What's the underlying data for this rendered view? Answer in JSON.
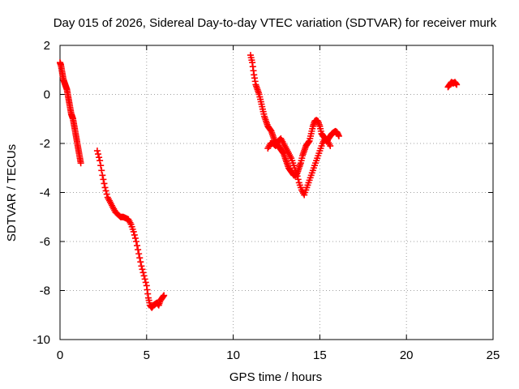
{
  "chart_data": {
    "type": "scatter",
    "title": "Day 015 of 2026, Sidereal Day-to-day VTEC variation (SDTVAR) for receiver murk",
    "xlabel": "GPS time / hours",
    "ylabel": "SDTVAR / TECUs",
    "xlim": [
      0,
      25
    ],
    "ylim": [
      -10,
      2
    ],
    "x_ticks": [
      0,
      5,
      10,
      15,
      20,
      25
    ],
    "y_ticks": [
      -10,
      -8,
      -6,
      -4,
      -2,
      0,
      2
    ],
    "x_tick_labels": [
      "0",
      "5",
      "10",
      "15",
      "20",
      "25"
    ],
    "y_tick_labels": [
      "-10",
      "-8",
      "-6",
      "-4",
      "-2",
      "0",
      "2"
    ],
    "grid": true,
    "marker": "+",
    "series_color": "#ff0000",
    "series": [
      {
        "name": "SDTVAR",
        "segments": [
          {
            "x": [
              0.0,
              0.05,
              0.1,
              0.15,
              0.2,
              0.25,
              0.3,
              0.35,
              0.4,
              0.45,
              0.5,
              0.55,
              0.6,
              0.65,
              0.7,
              0.75,
              0.8,
              0.85,
              0.9,
              0.95,
              1.0,
              1.05,
              1.1,
              1.15,
              1.2
            ],
            "y": [
              1.3,
              1.2,
              1.0,
              0.8,
              0.6,
              0.5,
              0.4,
              0.3,
              0.2,
              0.0,
              -0.2,
              -0.4,
              -0.6,
              -0.8,
              -0.9,
              -1.0,
              -1.2,
              -1.4,
              -1.6,
              -1.8,
              -2.0,
              -2.2,
              -2.4,
              -2.6,
              -2.8
            ]
          },
          {
            "x": [
              2.15,
              2.3,
              2.45,
              2.6,
              2.75,
              2.9,
              3.05,
              3.2,
              3.35,
              3.5,
              3.65,
              3.8,
              3.95,
              4.1,
              4.25,
              4.4,
              4.55,
              4.7,
              4.85,
              5.0,
              5.1,
              5.2,
              5.3,
              5.4,
              5.5,
              5.6,
              5.7,
              5.8,
              5.9,
              6.0
            ],
            "y": [
              -2.3,
              -2.7,
              -3.3,
              -3.8,
              -4.2,
              -4.4,
              -4.6,
              -4.8,
              -4.9,
              -5.0,
              -5.0,
              -5.05,
              -5.1,
              -5.3,
              -5.6,
              -6.0,
              -6.5,
              -7.0,
              -7.4,
              -7.8,
              -8.3,
              -8.6,
              -8.7,
              -8.6,
              -8.55,
              -8.5,
              -8.6,
              -8.4,
              -8.3,
              -8.2
            ]
          },
          {
            "x": [
              11.0,
              11.1,
              11.2,
              11.3,
              11.4,
              11.5,
              11.6,
              11.7,
              11.8,
              11.9,
              12.0,
              12.1,
              12.2,
              12.3,
              12.4,
              12.5,
              12.6,
              12.7,
              12.8,
              12.9,
              13.0,
              13.1,
              13.2,
              13.3,
              13.4,
              13.5,
              13.6,
              13.7,
              13.8,
              13.9,
              14.0,
              14.1,
              14.2,
              14.3,
              14.4,
              14.5,
              14.6,
              14.7,
              14.8,
              14.9,
              15.0,
              15.1,
              15.2,
              15.3,
              15.4,
              15.5,
              15.6,
              15.7,
              15.8,
              15.9,
              16.0,
              16.1
            ],
            "y": [
              1.6,
              1.3,
              0.8,
              0.4,
              0.2,
              0.0,
              -0.3,
              -0.6,
              -0.9,
              -1.1,
              -1.3,
              -1.4,
              -1.5,
              -1.7,
              -1.9,
              -2.0,
              -2.1,
              -2.2,
              -2.3,
              -2.4,
              -2.6,
              -2.8,
              -3.0,
              -3.1,
              -3.2,
              -3.3,
              -3.3,
              -3.2,
              -3.0,
              -2.8,
              -2.5,
              -2.3,
              -2.1,
              -2.0,
              -1.9,
              -1.6,
              -1.3,
              -1.1,
              -1.05,
              -1.1,
              -1.3,
              -1.6,
              -1.7,
              -1.8,
              -1.9,
              -1.8,
              -1.7,
              -1.6,
              -1.55,
              -1.5,
              -1.55,
              -1.7
            ]
          },
          {
            "x": [
              12.0,
              12.15,
              12.3,
              12.45,
              12.6,
              12.75,
              12.9,
              13.05,
              13.2,
              13.35,
              13.5,
              13.65,
              13.8,
              13.95,
              14.1,
              14.25,
              14.4,
              14.55,
              14.7,
              14.85,
              15.0,
              15.15,
              15.3,
              15.45,
              15.6
            ],
            "y": [
              -2.2,
              -2.0,
              -2.0,
              -2.1,
              -1.9,
              -1.8,
              -2.0,
              -2.2,
              -2.4,
              -2.6,
              -2.9,
              -3.2,
              -3.6,
              -3.9,
              -4.1,
              -3.8,
              -3.5,
              -3.2,
              -2.9,
              -2.6,
              -2.3,
              -2.0,
              -1.8,
              -1.9,
              -2.1
            ]
          },
          {
            "x": [
              22.4,
              22.5,
              22.6,
              22.7,
              22.8,
              22.9
            ],
            "y": [
              0.3,
              0.4,
              0.5,
              0.45,
              0.5,
              0.4
            ]
          }
        ]
      }
    ]
  }
}
